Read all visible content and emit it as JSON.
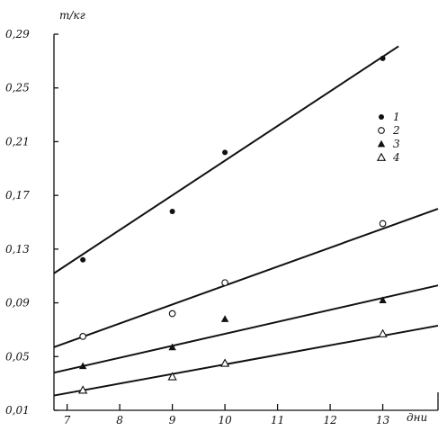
{
  "chart_data": {
    "type": "scatter",
    "ylabel": "т/кг",
    "xlabel": "дни",
    "xlim": [
      6.75,
      14.05
    ],
    "ylim": [
      0.01,
      0.29
    ],
    "x_ticks": [
      "7",
      "8",
      "9",
      "10",
      "11",
      "12",
      "13"
    ],
    "y_ticks": [
      "0,01",
      "0,05",
      "0,09",
      "0,13",
      "0,17",
      "0,21",
      "0,25",
      "0,29"
    ],
    "legend_position": "right",
    "series": [
      {
        "name": "1",
        "marker": "filled-circle",
        "points": [
          {
            "x": 7.3,
            "y": 0.122
          },
          {
            "x": 9.0,
            "y": 0.158
          },
          {
            "x": 10.0,
            "y": 0.202
          },
          {
            "x": 13.0,
            "y": 0.272
          }
        ],
        "fit": {
          "x0": 6.75,
          "y0": 0.112,
          "x1": 13.3,
          "y1": 0.281
        }
      },
      {
        "name": "2",
        "marker": "open-circle",
        "points": [
          {
            "x": 7.3,
            "y": 0.065
          },
          {
            "x": 9.0,
            "y": 0.082
          },
          {
            "x": 10.0,
            "y": 0.105
          },
          {
            "x": 13.0,
            "y": 0.149
          }
        ],
        "fit": {
          "x0": 6.75,
          "y0": 0.057,
          "x1": 14.05,
          "y1": 0.16
        }
      },
      {
        "name": "3",
        "marker": "filled-triangle",
        "points": [
          {
            "x": 7.3,
            "y": 0.043
          },
          {
            "x": 9.0,
            "y": 0.057
          },
          {
            "x": 10.0,
            "y": 0.078
          },
          {
            "x": 13.0,
            "y": 0.092
          }
        ],
        "fit": {
          "x0": 6.75,
          "y0": 0.038,
          "x1": 14.05,
          "y1": 0.103
        }
      },
      {
        "name": "4",
        "marker": "open-triangle",
        "points": [
          {
            "x": 7.3,
            "y": 0.025
          },
          {
            "x": 9.0,
            "y": 0.035
          },
          {
            "x": 10.0,
            "y": 0.045
          },
          {
            "x": 13.0,
            "y": 0.067
          }
        ],
        "fit": {
          "x0": 6.75,
          "y0": 0.021,
          "x1": 14.05,
          "y1": 0.073
        }
      }
    ]
  }
}
